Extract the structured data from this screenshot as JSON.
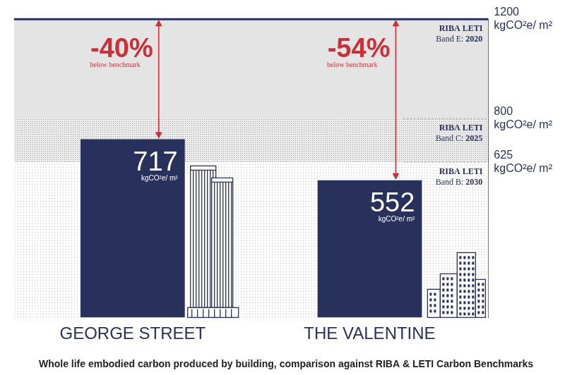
{
  "chart_data": {
    "type": "bar",
    "title": "Whole life embodied carbon produced by building, comparison against RIBA & LETI Carbon Benchmarks",
    "categories": [
      "GEORGE STREET",
      "THE VALENTINE"
    ],
    "values": [
      717,
      552
    ],
    "color": "#27315c",
    "y_label": "kgCO²e/ m²",
    "ylim": [
      0,
      1200
    ],
    "yticks": [
      625,
      800,
      1200
    ],
    "grid": false,
    "data_labels": true,
    "benchmarks": [
      {
        "name": "RIBA LETI",
        "band": "Band E:",
        "year": "2020",
        "value": 1200
      },
      {
        "name": "RIBA LETI",
        "band": "Band C:",
        "year": "2025",
        "value": 800
      },
      {
        "name": "RIBA LETI",
        "band": "Band B:",
        "year": "2030",
        "value": 625
      }
    ],
    "annotations": [
      {
        "category": "GEORGE STREET",
        "from": 1200,
        "to": 717,
        "text": "-40%",
        "subtext": "below benchmark"
      },
      {
        "category": "THE VALENTINE",
        "from": 1200,
        "to": 552,
        "text": "-54%",
        "subtext": "below benchmark"
      }
    ]
  }
}
